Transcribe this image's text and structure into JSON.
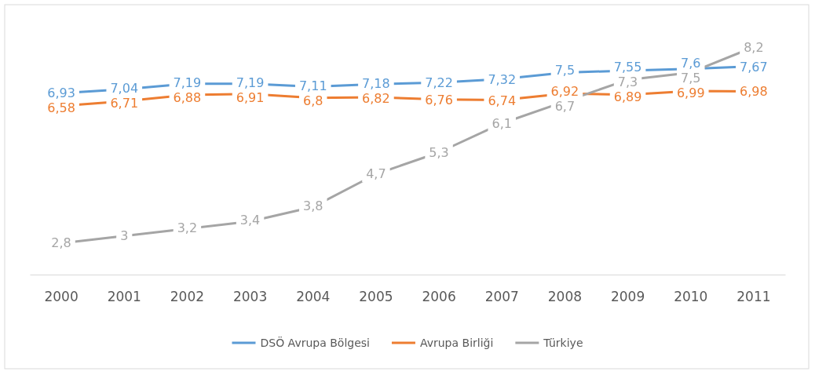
{
  "chart_data": {
    "type": "line",
    "categories": [
      "2000",
      "2001",
      "2002",
      "2003",
      "2004",
      "2005",
      "2006",
      "2007",
      "2008",
      "2009",
      "2010",
      "2011"
    ],
    "series": [
      {
        "name": "DSÖ Avrupa Bölgesi",
        "color": "#5b9bd5",
        "values": [
          6.93,
          7.04,
          7.19,
          7.19,
          7.11,
          7.18,
          7.22,
          7.32,
          7.5,
          7.55,
          7.6,
          7.67
        ],
        "value_labels": [
          "6,93",
          "7,04",
          "7,19",
          "7,19",
          "7,11",
          "7,18",
          "7,22",
          "7,32",
          "7,5",
          "7,55",
          "7,6",
          "7,67"
        ]
      },
      {
        "name": "Avrupa Birliği",
        "color": "#ed7d31",
        "values": [
          6.58,
          6.71,
          6.88,
          6.91,
          6.8,
          6.82,
          6.76,
          6.74,
          6.92,
          6.89,
          6.99,
          6.98
        ],
        "value_labels": [
          "6,58",
          "6,71",
          "6,88",
          "6,91",
          "6,8",
          "6,82",
          "6,76",
          "6,74",
          "6,92",
          "6,89",
          "6,99",
          "6,98"
        ]
      },
      {
        "name": "Türkiye",
        "color": "#a5a5a5",
        "values": [
          2.8,
          3,
          3.2,
          3.4,
          3.8,
          4.7,
          5.3,
          6.1,
          6.7,
          7.3,
          7.5,
          8.2
        ],
        "value_labels": [
          "2,8",
          "3",
          "3,2",
          "3,4",
          "3,8",
          "4,7",
          "5,3",
          "6,1",
          "6,7",
          "7,3",
          "7,5",
          "8,2"
        ]
      }
    ],
    "tick_labels": "x",
    "legend": "bottom",
    "marker": "none",
    "line_style": "solid"
  }
}
